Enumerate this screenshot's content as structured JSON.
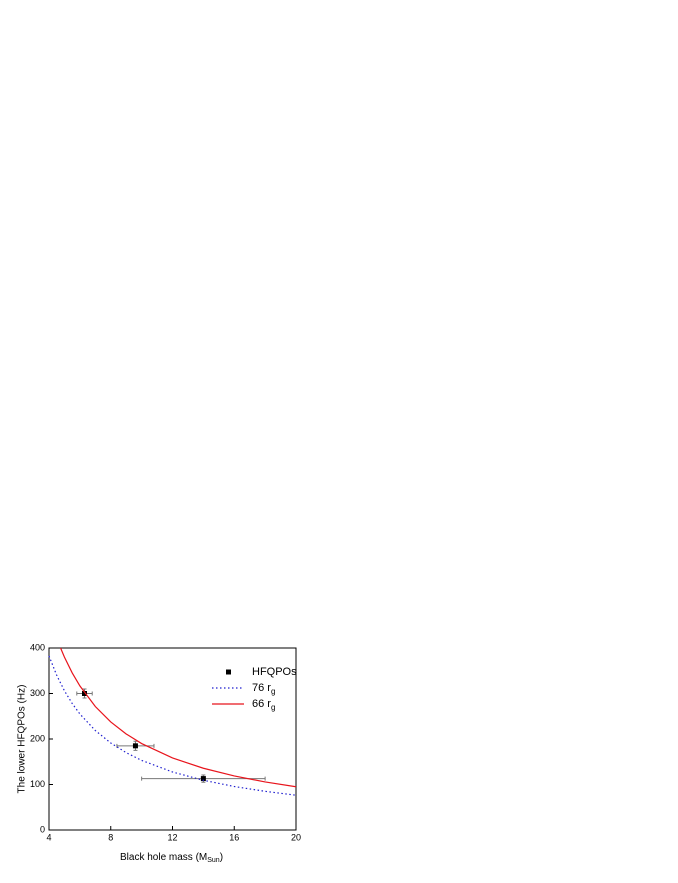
{
  "chart_data": {
    "type": "scatter",
    "x_label": [
      "Black hole mass (M",
      "Sun",
      ")"
    ],
    "y_label": "The lower HFQPOs (Hz)",
    "xlim": [
      4,
      20
    ],
    "xticks": [
      4,
      8,
      12,
      16,
      20
    ],
    "ylim": [
      0,
      400
    ],
    "yticks": [
      0,
      100,
      200,
      300,
      400
    ],
    "series": [
      {
        "name": "HFQPOs",
        "sub": "",
        "kind": "points",
        "color": "#000000",
        "x": [
          6.3,
          9.6,
          14.0
        ],
        "values": [
          300,
          185,
          113
        ],
        "xerr": [
          0.5,
          1.2,
          4.0
        ],
        "yerr": [
          10,
          10,
          8
        ]
      },
      {
        "name": "76 r",
        "sub": "g",
        "kind": "line",
        "dash": "1.5,2.5",
        "color": "#1f1fcf",
        "x": [
          4,
          4.5,
          5,
          5.5,
          6,
          7,
          8,
          9,
          10,
          12,
          14,
          16,
          18,
          20
        ],
        "values": [
          382.5,
          340,
          306,
          278.2,
          255,
          218.6,
          191.3,
          170,
          153,
          127.5,
          109.3,
          95.6,
          85,
          76.5
        ]
      },
      {
        "name": "66 r",
        "sub": "g",
        "kind": "line",
        "dash": "",
        "color": "#e8141c",
        "x": [
          4.75,
          5,
          5.5,
          6,
          7,
          8,
          9,
          10,
          12,
          14,
          16,
          18,
          20
        ],
        "values": [
          400,
          380,
          345.5,
          316.7,
          271.4,
          237.5,
          211.1,
          190,
          158.3,
          135.7,
          118.8,
          105.6,
          95
        ]
      }
    ]
  }
}
